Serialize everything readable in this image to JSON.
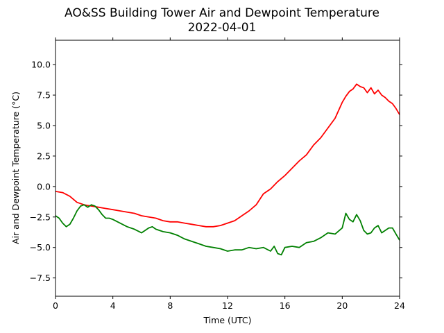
{
  "chart_data": {
    "type": "line",
    "title": "AO&SS Building Tower Air and Dewpoint Temperature",
    "subtitle": "2022-04-01",
    "xlabel": "Time (UTC)",
    "ylabel": "Air and Dewpoint Temperature (°C)",
    "xlim": [
      0,
      24
    ],
    "ylim": [
      -9,
      12
    ],
    "xticks": [
      0,
      4,
      8,
      12,
      16,
      20,
      24
    ],
    "yticks": [
      -7.5,
      -5.0,
      -2.5,
      0.0,
      2.5,
      5.0,
      7.5,
      10.0
    ],
    "xtick_labels": [
      "0",
      "4",
      "8",
      "12",
      "16",
      "20",
      "24"
    ],
    "ytick_labels": [
      "−7.5",
      "−5.0",
      "−2.5",
      "0.0",
      "2.5",
      "5.0",
      "7.5",
      "10.0"
    ],
    "grid": false,
    "series": [
      {
        "color": "#ff0000",
        "x": [
          0,
          0.5,
          1,
          1.5,
          2,
          2.5,
          3,
          3.5,
          4,
          4.5,
          5,
          5.5,
          6,
          6.5,
          7,
          7.5,
          8,
          8.5,
          9,
          9.5,
          10,
          10.5,
          11,
          11.5,
          12,
          12.5,
          13,
          13.5,
          14,
          14.5,
          15,
          15.5,
          16,
          16.5,
          17,
          17.5,
          18,
          18.5,
          19,
          19.5,
          20,
          20.25,
          20.5,
          20.75,
          21,
          21.25,
          21.5,
          21.75,
          22,
          22.25,
          22.5,
          22.75,
          23,
          23.25,
          23.5,
          23.75,
          24
        ],
        "values": [
          -0.4,
          -0.5,
          -0.8,
          -1.3,
          -1.5,
          -1.6,
          -1.7,
          -1.8,
          -1.9,
          -2.0,
          -2.1,
          -2.2,
          -2.4,
          -2.5,
          -2.6,
          -2.8,
          -2.9,
          -2.9,
          -3.0,
          -3.1,
          -3.2,
          -3.3,
          -3.3,
          -3.2,
          -3.0,
          -2.8,
          -2.4,
          -2.0,
          -1.5,
          -0.6,
          -0.2,
          0.4,
          0.9,
          1.5,
          2.1,
          2.6,
          3.4,
          4.0,
          4.8,
          5.6,
          6.9,
          7.4,
          7.8,
          8.0,
          8.4,
          8.2,
          8.1,
          7.7,
          8.1,
          7.6,
          7.9,
          7.5,
          7.3,
          7.0,
          6.8,
          6.4,
          5.9
        ]
      },
      {
        "color": "#008000",
        "x": [
          0,
          0.25,
          0.5,
          0.75,
          1,
          1.25,
          1.5,
          1.75,
          2,
          2.25,
          2.5,
          2.75,
          3,
          3.25,
          3.5,
          3.75,
          4,
          4.5,
          5,
          5.5,
          6,
          6.25,
          6.5,
          6.75,
          7,
          7.5,
          8,
          8.5,
          9,
          9.5,
          10,
          10.5,
          11,
          11.5,
          12,
          12.5,
          13,
          13.5,
          14,
          14.5,
          15,
          15.25,
          15.5,
          15.75,
          16,
          16.5,
          17,
          17.5,
          18,
          18.5,
          19,
          19.5,
          20,
          20.25,
          20.5,
          20.75,
          21,
          21.25,
          21.5,
          21.75,
          22,
          22.25,
          22.5,
          22.75,
          23,
          23.25,
          23.5,
          23.75,
          24
        ],
        "values": [
          -2.4,
          -2.6,
          -3.0,
          -3.3,
          -3.1,
          -2.6,
          -2.0,
          -1.6,
          -1.5,
          -1.7,
          -1.5,
          -1.6,
          -1.9,
          -2.3,
          -2.6,
          -2.6,
          -2.7,
          -3.0,
          -3.3,
          -3.5,
          -3.8,
          -3.6,
          -3.4,
          -3.3,
          -3.5,
          -3.7,
          -3.8,
          -4.0,
          -4.3,
          -4.5,
          -4.7,
          -4.9,
          -5.0,
          -5.1,
          -5.3,
          -5.2,
          -5.2,
          -5.0,
          -5.1,
          -5.0,
          -5.3,
          -4.9,
          -5.5,
          -5.6,
          -5.0,
          -4.9,
          -5.0,
          -4.6,
          -4.5,
          -4.2,
          -3.8,
          -3.9,
          -3.4,
          -2.2,
          -2.7,
          -2.9,
          -2.3,
          -2.8,
          -3.6,
          -3.9,
          -3.8,
          -3.4,
          -3.2,
          -3.8,
          -3.6,
          -3.4,
          -3.4,
          -3.9,
          -4.4
        ]
      }
    ]
  }
}
